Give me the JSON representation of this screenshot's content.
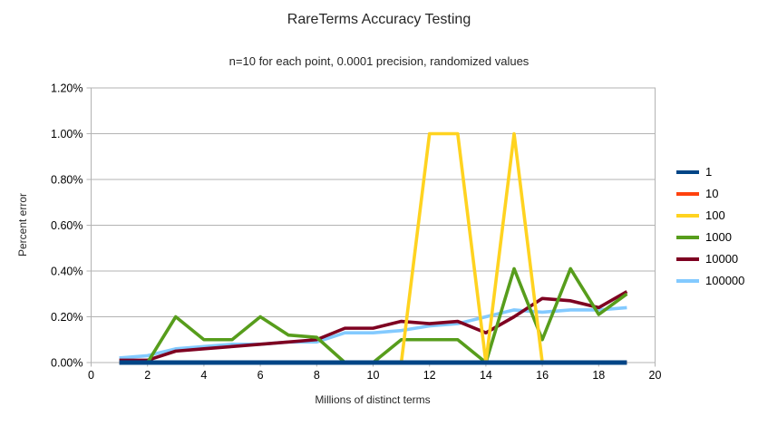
{
  "title": "RareTerms Accuracy Testing",
  "subtitle": "n=10 for each point, 0.0001 precision, randomized values",
  "axes": {
    "x_title": "Millions of distinct terms",
    "y_title": "Percent error",
    "x_ticks": [
      0,
      2,
      4,
      6,
      8,
      10,
      12,
      14,
      16,
      18,
      20
    ],
    "y_tick_values": [
      0,
      0.2,
      0.4,
      0.6,
      0.8,
      1.0,
      1.2
    ],
    "y_tick_labels": [
      "0.00%",
      "0.20%",
      "0.40%",
      "0.60%",
      "0.80%",
      "1.00%",
      "1.20%"
    ]
  },
  "legend": {
    "items": [
      "1",
      "10",
      "100",
      "1000",
      "10000",
      "100000"
    ]
  },
  "colors": {
    "axis": "#b3b3b3",
    "grid": "#b3b3b3",
    "text": "#000000"
  },
  "chart_data": {
    "type": "line",
    "title": "RareTerms Accuracy Testing",
    "subtitle": "n=10 for each point, 0.0001 precision, randomized values",
    "xlabel": "Millions of distinct terms",
    "ylabel": "Percent error",
    "xlim": [
      0,
      20
    ],
    "ylim": [
      0,
      1.2
    ],
    "y_unit": "percent",
    "grid": "horizontal",
    "legend_position": "right",
    "x": [
      1,
      2,
      3,
      4,
      5,
      6,
      7,
      8,
      9,
      10,
      11,
      12,
      13,
      14,
      15,
      16,
      17,
      18,
      19
    ],
    "series": [
      {
        "name": "1",
        "color": "#004586",
        "values": [
          0,
          0,
          0,
          0,
          0,
          0,
          0,
          0,
          0,
          0,
          0,
          0,
          0,
          0,
          0,
          0,
          0,
          0,
          0
        ]
      },
      {
        "name": "10",
        "color": "#FF420E",
        "values": [
          0,
          0,
          0,
          0,
          0,
          0,
          0,
          0,
          0,
          0,
          0,
          0,
          0,
          0,
          0,
          0,
          0,
          0,
          0
        ]
      },
      {
        "name": "100",
        "color": "#FFD320",
        "values": [
          0,
          0,
          0,
          0,
          0,
          0,
          0,
          0,
          0,
          0,
          0,
          1.0,
          1.0,
          0,
          1.0,
          0,
          0,
          0,
          0
        ]
      },
      {
        "name": "1000",
        "color": "#579D1C",
        "values": [
          0,
          0,
          0.2,
          0.1,
          0.1,
          0.2,
          0.12,
          0.11,
          0,
          0,
          0.1,
          0.1,
          0.1,
          0,
          0.41,
          0.1,
          0.41,
          0.21,
          0.3
        ]
      },
      {
        "name": "10000",
        "color": "#7E0021",
        "values": [
          0.01,
          0.01,
          0.05,
          0.06,
          0.07,
          0.08,
          0.09,
          0.1,
          0.15,
          0.15,
          0.18,
          0.17,
          0.18,
          0.13,
          0.2,
          0.28,
          0.27,
          0.24,
          0.31
        ]
      },
      {
        "name": "100000",
        "color": "#83CAFF",
        "values": [
          0.02,
          0.03,
          0.06,
          0.07,
          0.08,
          0.08,
          0.09,
          0.09,
          0.13,
          0.13,
          0.14,
          0.16,
          0.17,
          0.2,
          0.23,
          0.22,
          0.23,
          0.23,
          0.24
        ]
      }
    ]
  }
}
